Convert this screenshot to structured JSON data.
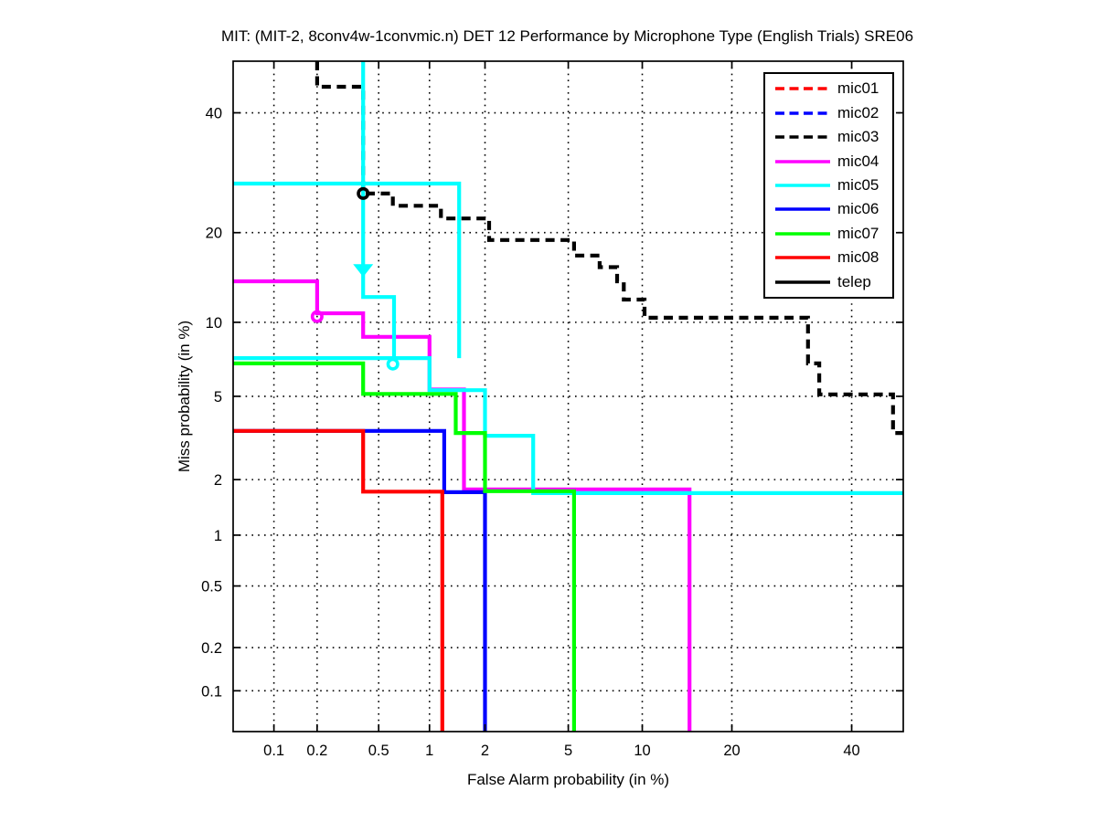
{
  "title": "MIT: (MIT-2, 8conv4w-1convmic.n) DET 12 Performance by Microphone Type (English Trials) SRE06",
  "chart_data": {
    "type": "line",
    "subtype": "DET-curve-staircase",
    "title": "MIT: (MIT-2, 8conv4w-1convmic.n) DET 12 Performance by Microphone Type (English Trials) SRE06",
    "xlabel": "False Alarm probability (in %)",
    "ylabel": "Miss probability (in %)",
    "axis_scale": "probit (normal deviate) on both axes",
    "xlim_pct": [
      0.05,
      50
    ],
    "ylim_pct": [
      0.05,
      50
    ],
    "xticks": [
      0.1,
      0.2,
      0.5,
      1,
      2,
      5,
      10,
      20,
      40
    ],
    "xtick_labels": [
      "0.1",
      "0.2",
      "0.5",
      "1",
      "2",
      "5",
      "10",
      "20",
      "40"
    ],
    "yticks": [
      0.1,
      0.2,
      0.5,
      1,
      2,
      5,
      10,
      20,
      40
    ],
    "ytick_labels": [
      "0.1",
      "0.2",
      "0.5",
      "1",
      "2",
      "5",
      "10",
      "20",
      "40"
    ],
    "grid": "dotted",
    "legend_position": "upper right",
    "series": [
      {
        "name": "mic01",
        "color": "#ff0000",
        "style": "dashed",
        "segments": []
      },
      {
        "name": "mic02",
        "color": "#0000ff",
        "style": "dashed",
        "segments": []
      },
      {
        "name": "mic03",
        "color": "#000000",
        "style": "dashed",
        "segments": [
          [
            [
              0.2,
              50
            ],
            [
              0.2,
              45
            ],
            [
              0.4,
              45
            ],
            [
              0.4,
              25.8
            ],
            [
              0.61,
              25.8
            ],
            [
              0.61,
              23.9
            ],
            [
              1.16,
              23.9
            ],
            [
              1.16,
              22
            ],
            [
              2.1,
              22
            ],
            [
              2.1,
              19
            ],
            [
              5.3,
              19
            ],
            [
              5.3,
              17
            ],
            [
              6.8,
              17
            ],
            [
              6.8,
              15.6
            ],
            [
              8,
              15.6
            ],
            [
              8,
              14
            ],
            [
              8.5,
              14
            ],
            [
              8.5,
              12.1
            ],
            [
              10.2,
              12.1
            ],
            [
              10.2,
              10.4
            ],
            [
              32,
              10.4
            ],
            [
              32,
              6.9
            ],
            [
              34,
              6.9
            ],
            [
              34,
              5.1
            ],
            [
              48,
              5.1
            ],
            [
              48,
              3.4
            ],
            [
              50,
              3.4
            ]
          ]
        ]
      },
      {
        "name": "mic04",
        "color": "#ff00ff",
        "style": "solid",
        "segments": [
          [
            [
              0.05,
              14
            ],
            [
              0.2,
              14
            ],
            [
              0.2,
              10.8
            ],
            [
              0.4,
              10.8
            ],
            [
              0.4,
              8.8
            ],
            [
              1.0,
              8.8
            ],
            [
              1.0,
              5.35
            ],
            [
              1.55,
              5.35
            ],
            [
              1.55,
              1.78
            ],
            [
              14.7,
              1.78
            ],
            [
              14.7,
              0.05
            ]
          ]
        ]
      },
      {
        "name": "mic05",
        "color": "#00ffff",
        "style": "solid",
        "segments": [
          [
            [
              0.05,
              27.4
            ],
            [
              1.46,
              27.4
            ],
            [
              1.46,
              7.25
            ]
          ],
          [
            [
              0.4,
              50
            ],
            [
              0.4,
              12.35
            ],
            [
              0.62,
              12.35
            ],
            [
              0.62,
              7.25
            ]
          ],
          [
            [
              0.05,
              7.25
            ],
            [
              1.0,
              7.25
            ],
            [
              1.0,
              5.32
            ],
            [
              2.0,
              5.32
            ],
            [
              2.0,
              3.3
            ],
            [
              3.46,
              3.3
            ],
            [
              3.46,
              1.7
            ],
            [
              50,
              1.7
            ]
          ]
        ]
      },
      {
        "name": "mic06",
        "color": "#0000ff",
        "style": "solid",
        "segments": [
          [
            [
              0.05,
              3.48
            ],
            [
              1.21,
              3.48
            ],
            [
              1.21,
              1.72
            ],
            [
              2.0,
              1.72
            ],
            [
              2.0,
              0.05
            ]
          ]
        ]
      },
      {
        "name": "mic07",
        "color": "#00ff00",
        "style": "solid",
        "segments": [
          [
            [
              0.05,
              6.9
            ],
            [
              0.4,
              6.9
            ],
            [
              0.4,
              5.12
            ],
            [
              1.4,
              5.12
            ],
            [
              1.4,
              3.4
            ],
            [
              2.0,
              3.4
            ],
            [
              2.0,
              1.74
            ],
            [
              5.3,
              1.74
            ],
            [
              5.3,
              0.05
            ]
          ]
        ]
      },
      {
        "name": "mic08",
        "color": "#ff0000",
        "style": "solid",
        "segments": [
          [
            [
              0.05,
              3.48
            ],
            [
              0.4,
              3.48
            ],
            [
              0.4,
              1.73
            ],
            [
              1.18,
              1.73
            ],
            [
              1.18,
              0.05
            ]
          ]
        ]
      },
      {
        "name": "telep",
        "color": "#000000",
        "style": "solid",
        "segments": []
      }
    ],
    "markers": [
      {
        "series": "mic03",
        "shape": "circle",
        "color": "#000000",
        "fa": 0.4,
        "miss": 25.8
      },
      {
        "series": "mic04",
        "shape": "circle",
        "color": "#ff00ff",
        "fa": 0.2,
        "miss": 10.5
      },
      {
        "series": "mic05",
        "shape": "triangle-down",
        "color": "#00ffff",
        "fa": 0.4,
        "miss": 15.2
      },
      {
        "series": "mic05",
        "shape": "circle",
        "color": "#00ffff",
        "fa": 0.61,
        "miss": 6.85
      }
    ]
  },
  "legend": {
    "items": [
      {
        "label": "mic01",
        "color": "#ff0000",
        "dash": true
      },
      {
        "label": "mic02",
        "color": "#0000ff",
        "dash": true
      },
      {
        "label": "mic03",
        "color": "#000000",
        "dash": true
      },
      {
        "label": "mic04",
        "color": "#ff00ff",
        "dash": false
      },
      {
        "label": "mic05",
        "color": "#00ffff",
        "dash": false
      },
      {
        "label": "mic06",
        "color": "#0000ff",
        "dash": false
      },
      {
        "label": "mic07",
        "color": "#00ff00",
        "dash": false
      },
      {
        "label": "mic08",
        "color": "#ff0000",
        "dash": false
      },
      {
        "label": "telep",
        "color": "#000000",
        "dash": false
      }
    ]
  }
}
